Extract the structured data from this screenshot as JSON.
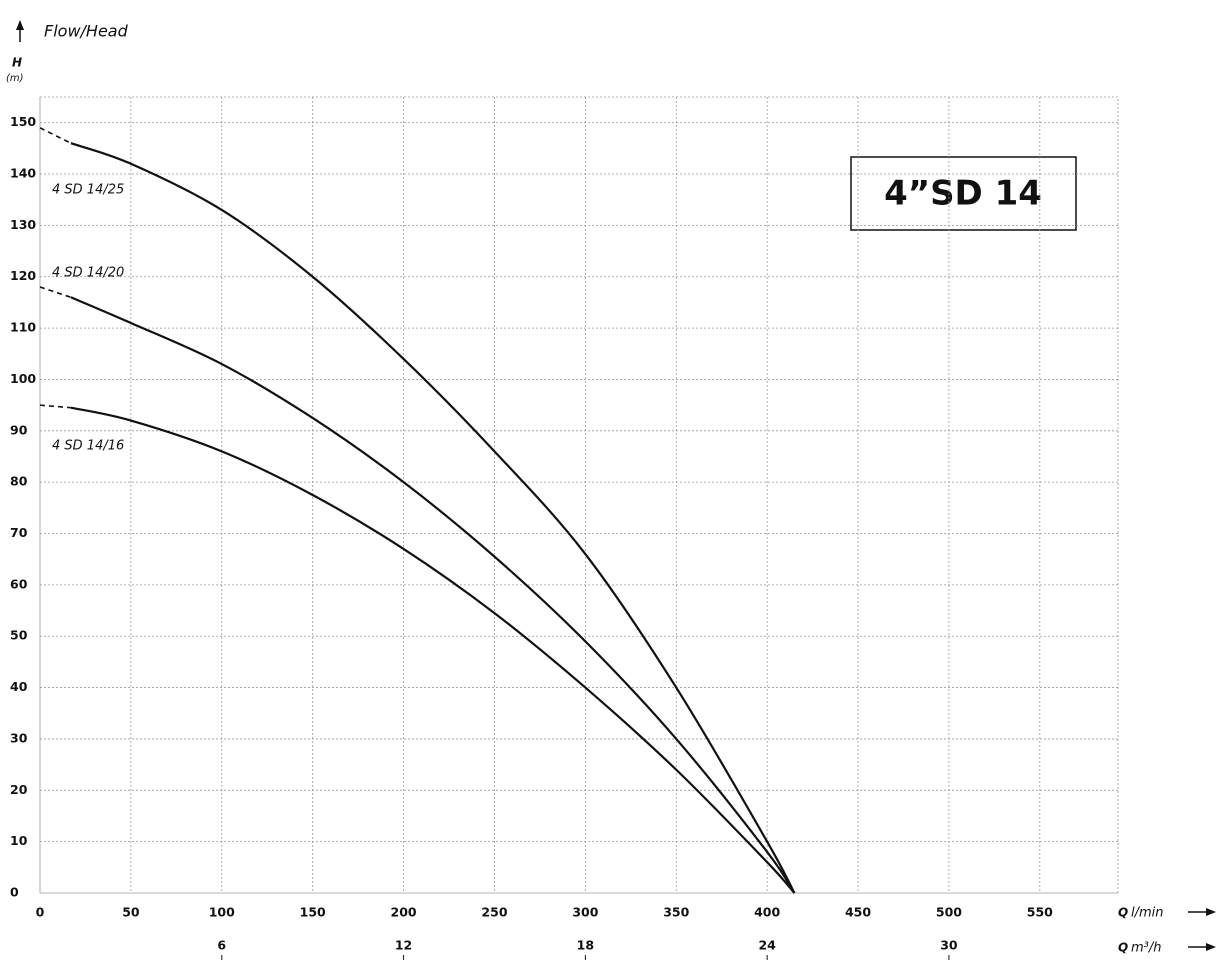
{
  "chart_data": {
    "type": "line",
    "title": "Flow/Head",
    "y_label": "H",
    "y_unit": "(m)",
    "x_label": "Q",
    "x_unit": "l/min",
    "x2_label": "Q",
    "x2_unit": "m³/h",
    "annotation": "4”SD 14",
    "xlim": [
      0,
      593
    ],
    "xticks": [
      0,
      50,
      100,
      150,
      200,
      250,
      300,
      350,
      400,
      450,
      500,
      550
    ],
    "x2lim": [
      0,
      35.58
    ],
    "x2ticks": [
      6,
      12,
      18,
      24,
      30
    ],
    "ylim": [
      0,
      155
    ],
    "yticks": [
      0,
      10,
      20,
      30,
      40,
      50,
      60,
      70,
      80,
      90,
      100,
      110,
      120,
      130,
      140,
      150
    ],
    "grid": true,
    "series": [
      {
        "name": "4 SD 14/25",
        "color": "#111111",
        "extrapolated_x": [
          0,
          17
        ],
        "extrapolated_values": [
          149,
          146
        ],
        "x": [
          17,
          50,
          100,
          150,
          200,
          250,
          300,
          350,
          400,
          415
        ],
        "values": [
          146,
          142,
          133,
          120,
          104,
          86,
          66,
          40,
          10,
          0
        ]
      },
      {
        "name": "4 SD 14/20",
        "color": "#111111",
        "extrapolated_x": [
          0,
          17
        ],
        "extrapolated_values": [
          118,
          116
        ],
        "x": [
          17,
          50,
          100,
          150,
          200,
          250,
          300,
          350,
          400,
          415
        ],
        "values": [
          116,
          111,
          103,
          92.5,
          80,
          65.5,
          49,
          30,
          8,
          0
        ]
      },
      {
        "name": "4 SD 14/16",
        "color": "#111111",
        "extrapolated_x": [
          0,
          17
        ],
        "extrapolated_values": [
          95,
          94.5
        ],
        "x": [
          17,
          50,
          100,
          150,
          200,
          250,
          300,
          350,
          400,
          415
        ],
        "values": [
          94.5,
          92,
          86,
          77.5,
          67,
          54.5,
          40,
          24,
          6,
          0
        ]
      }
    ]
  }
}
